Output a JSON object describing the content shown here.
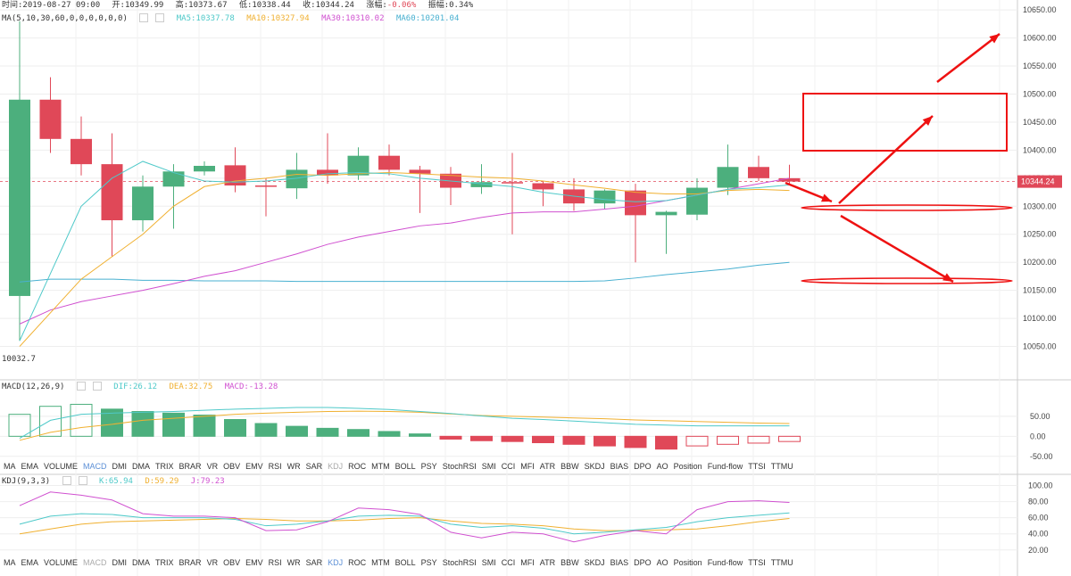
{
  "header": {
    "time": "时间:2019-08-27 09:00",
    "open": "开:10349.99",
    "high": "高:10373.67",
    "low": "低:10338.44",
    "close": "收:10344.24",
    "change_label": "涨幅:",
    "change_value": "-0.06%",
    "amplitude": "振幅:0.34%"
  },
  "ma_legend": {
    "label": "MA(5,10,30,60,0,0,0,0,0,0)",
    "ma5": "MA5:10337.78",
    "ma10": "MA10:10327.94",
    "ma30": "MA30:10310.02",
    "ma60": "MA60:10201.04"
  },
  "macd_legend": {
    "label": "MACD(12,26,9)",
    "dif": "DIF:26.12",
    "dea": "DEA:32.75",
    "macd": "MACD:-13.28"
  },
  "kdj_legend": {
    "label": "KDJ(9,3,3)",
    "k": "K:65.94",
    "d": "D:59.29",
    "j": "J:79.23"
  },
  "tabs": [
    "MA",
    "EMA",
    "VOLUME",
    "MACD",
    "DMI",
    "DMA",
    "TRIX",
    "BRAR",
    "VR",
    "OBV",
    "EMV",
    "RSI",
    "WR",
    "SAR",
    "KDJ",
    "ROC",
    "MTM",
    "BOLL",
    "PSY",
    "StochRSI",
    "SMI",
    "CCI",
    "MFI",
    "ATR",
    "BBW",
    "SKDJ",
    "BIAS",
    "DPO",
    "AO",
    "Position",
    "Fund-flow",
    "TTSI",
    "TTMU"
  ],
  "tabs_row1_active": "MACD",
  "tabs_row1_dim": [
    "KDJ"
  ],
  "tabs_row2_active": "KDJ",
  "tabs_row2_dim": [
    "MACD"
  ],
  "low_marker": "10032.7",
  "price_tag": "10344.24",
  "colors": {
    "up": "#4caf7d",
    "down": "#e04858",
    "ma5": "#4ec9c9",
    "ma10": "#f0b030",
    "ma30": "#d050d0",
    "ma60": "#48b0d0",
    "annotation": "#ee1111"
  },
  "chart_data": {
    "type": "candlestick",
    "price_axis": {
      "ticks": [
        10650,
        10600,
        10550,
        10500,
        10450,
        10400,
        10350,
        10300,
        10250,
        10200,
        10150,
        10100,
        10050
      ],
      "range": [
        10000,
        10655
      ]
    },
    "candles": [
      {
        "o": 10140,
        "h": 10630,
        "l": 10060,
        "c": 10490
      },
      {
        "o": 10490,
        "h": 10530,
        "l": 10395,
        "c": 10420
      },
      {
        "o": 10420,
        "h": 10460,
        "l": 10355,
        "c": 10375
      },
      {
        "o": 10375,
        "h": 10430,
        "l": 10210,
        "c": 10275
      },
      {
        "o": 10275,
        "h": 10355,
        "l": 10255,
        "c": 10335
      },
      {
        "o": 10335,
        "h": 10375,
        "l": 10260,
        "c": 10362
      },
      {
        "o": 10362,
        "h": 10380,
        "l": 10355,
        "c": 10372
      },
      {
        "o": 10373,
        "h": 10405,
        "l": 10325,
        "c": 10337
      },
      {
        "o": 10337,
        "h": 10350,
        "l": 10282,
        "c": 10335
      },
      {
        "o": 10332,
        "h": 10395,
        "l": 10313,
        "c": 10365
      },
      {
        "o": 10365,
        "h": 10430,
        "l": 10340,
        "c": 10355
      },
      {
        "o": 10355,
        "h": 10405,
        "l": 10347,
        "c": 10390
      },
      {
        "o": 10390,
        "h": 10410,
        "l": 10355,
        "c": 10365
      },
      {
        "o": 10365,
        "h": 10372,
        "l": 10288,
        "c": 10358
      },
      {
        "o": 10358,
        "h": 10370,
        "l": 10302,
        "c": 10333
      },
      {
        "o": 10334,
        "h": 10375,
        "l": 10322,
        "c": 10343
      },
      {
        "o": 10343,
        "h": 10395,
        "l": 10250,
        "c": 10341
      },
      {
        "o": 10341,
        "h": 10345,
        "l": 10300,
        "c": 10330
      },
      {
        "o": 10330,
        "h": 10350,
        "l": 10292,
        "c": 10305
      },
      {
        "o": 10305,
        "h": 10330,
        "l": 10295,
        "c": 10328
      },
      {
        "o": 10328,
        "h": 10340,
        "l": 10200,
        "c": 10284
      },
      {
        "o": 10284,
        "h": 10292,
        "l": 10215,
        "c": 10290
      },
      {
        "o": 10285,
        "h": 10350,
        "l": 10275,
        "c": 10333
      },
      {
        "o": 10333,
        "h": 10410,
        "l": 10320,
        "c": 10370
      },
      {
        "o": 10370,
        "h": 10390,
        "l": 10345,
        "c": 10350
      },
      {
        "o": 10350,
        "h": 10374,
        "l": 10338,
        "c": 10344
      }
    ],
    "ma5": [
      10060,
      10180,
      10300,
      10350,
      10380,
      10360,
      10345,
      10343,
      10345,
      10350,
      10358,
      10360,
      10358,
      10350,
      10345,
      10340,
      10335,
      10325,
      10318,
      10312,
      10308,
      10310,
      10320,
      10330,
      10333,
      10338
    ],
    "ma10": [
      10050,
      10110,
      10170,
      10210,
      10250,
      10300,
      10335,
      10345,
      10350,
      10357,
      10355,
      10358,
      10360,
      10358,
      10355,
      10352,
      10350,
      10345,
      10338,
      10332,
      10325,
      10322,
      10322,
      10328,
      10330,
      10328
    ],
    "ma30": [
      10090,
      10115,
      10130,
      10140,
      10150,
      10162,
      10175,
      10185,
      10200,
      10215,
      10232,
      10245,
      10255,
      10265,
      10270,
      10280,
      10288,
      10290,
      10290,
      10295,
      10300,
      10310,
      10320,
      10330,
      10340,
      10350
    ],
    "ma60": [
      10165,
      10170,
      10170,
      10170,
      10168,
      10168,
      10167,
      10167,
      10167,
      10166,
      10166,
      10166,
      10166,
      10166,
      10166,
      10166,
      10166,
      10166,
      10166,
      10167,
      10172,
      10178,
      10183,
      10188,
      10195,
      10200
    ],
    "macd_axis": {
      "ticks": [
        50,
        0,
        -50
      ],
      "range": [
        -55,
        110
      ]
    },
    "macd_hist": [
      55,
      75,
      80,
      68,
      62,
      58,
      53,
      42,
      32,
      25,
      20,
      17,
      12,
      6,
      -7,
      -11,
      -13,
      -16,
      -20,
      -24,
      -28,
      -32,
      -24,
      -20,
      -17,
      -13
    ],
    "macd_dif": [
      -5,
      40,
      55,
      58,
      60,
      62,
      65,
      68,
      70,
      72,
      72,
      70,
      67,
      62,
      57,
      51,
      45,
      42,
      38,
      34,
      30,
      28,
      26,
      26,
      26,
      26
    ],
    "macd_dea": [
      -10,
      10,
      22,
      30,
      40,
      45,
      50,
      55,
      58,
      60,
      62,
      63,
      62,
      60,
      56,
      52,
      50,
      48,
      46,
      44,
      41,
      39,
      37,
      35,
      33,
      32
    ],
    "kdj_axis": {
      "ticks": [
        100,
        80,
        60,
        40,
        20
      ],
      "range": [
        12,
        105
      ]
    },
    "kdj_k": [
      52,
      62,
      65,
      64,
      60,
      60,
      60,
      58,
      50,
      52,
      56,
      62,
      63,
      62,
      52,
      48,
      50,
      47,
      40,
      42,
      45,
      48,
      55,
      60,
      63,
      66
    ],
    "kdj_d": [
      40,
      46,
      52,
      55,
      56,
      57,
      58,
      59,
      58,
      56,
      56,
      57,
      59,
      60,
      56,
      53,
      52,
      50,
      46,
      44,
      44,
      45,
      46,
      50,
      55,
      59
    ],
    "kdj_j": [
      75,
      92,
      88,
      82,
      65,
      62,
      62,
      60,
      44,
      45,
      55,
      72,
      70,
      64,
      42,
      35,
      42,
      40,
      30,
      38,
      44,
      40,
      70,
      80,
      81,
      79
    ]
  }
}
